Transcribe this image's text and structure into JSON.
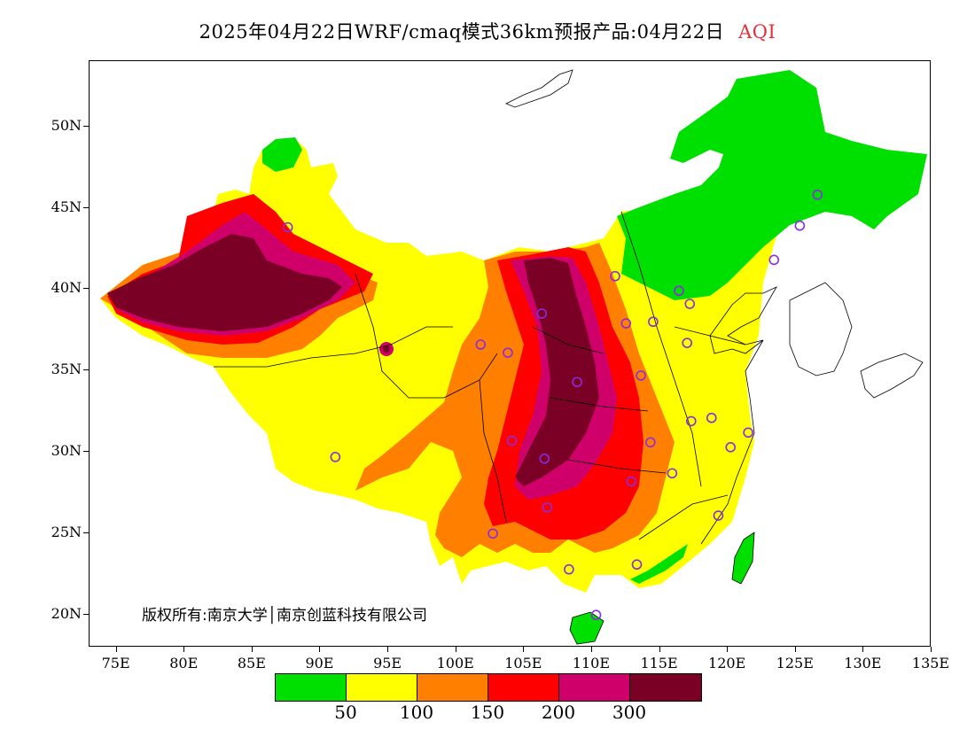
{
  "title": {
    "text": "2025年04月22日WRF/cmaq模式36km预报产品:04月22日",
    "variable": "AQI",
    "variable_color": "#e0303a"
  },
  "map": {
    "lon_range": [
      73,
      135
    ],
    "lat_range": [
      18,
      54
    ],
    "lat_labels": [
      "20N",
      "25N",
      "30N",
      "35N",
      "40N",
      "45N",
      "50N"
    ],
    "lon_labels": [
      "75E",
      "80E",
      "85E",
      "90E",
      "95E",
      "100E",
      "105E",
      "110E",
      "115E",
      "120E",
      "125E",
      "130E",
      "135E"
    ],
    "lat_values": [
      20,
      25,
      30,
      35,
      40,
      45,
      50
    ],
    "lon_values": [
      75,
      80,
      85,
      90,
      95,
      100,
      105,
      110,
      115,
      120,
      125,
      130,
      135
    ],
    "station_marker_color": "#8a2be2",
    "stations": [
      {
        "lon": 87.6,
        "lat": 43.8
      },
      {
        "lon": 91.1,
        "lat": 29.7
      },
      {
        "lon": 101.8,
        "lat": 36.6
      },
      {
        "lon": 103.8,
        "lat": 36.1
      },
      {
        "lon": 106.3,
        "lat": 38.5
      },
      {
        "lon": 104.1,
        "lat": 30.7
      },
      {
        "lon": 106.5,
        "lat": 29.6
      },
      {
        "lon": 106.7,
        "lat": 26.6
      },
      {
        "lon": 102.7,
        "lat": 25.0
      },
      {
        "lon": 108.9,
        "lat": 34.3
      },
      {
        "lon": 111.7,
        "lat": 40.8
      },
      {
        "lon": 112.5,
        "lat": 37.9
      },
      {
        "lon": 114.5,
        "lat": 38.0
      },
      {
        "lon": 116.4,
        "lat": 39.9
      },
      {
        "lon": 117.2,
        "lat": 39.1
      },
      {
        "lon": 113.6,
        "lat": 34.7
      },
      {
        "lon": 117.0,
        "lat": 36.7
      },
      {
        "lon": 114.3,
        "lat": 30.6
      },
      {
        "lon": 112.9,
        "lat": 28.2
      },
      {
        "lon": 115.9,
        "lat": 28.7
      },
      {
        "lon": 117.3,
        "lat": 31.9
      },
      {
        "lon": 118.8,
        "lat": 32.1
      },
      {
        "lon": 120.2,
        "lat": 30.3
      },
      {
        "lon": 121.5,
        "lat": 31.2
      },
      {
        "lon": 119.3,
        "lat": 26.1
      },
      {
        "lon": 113.3,
        "lat": 23.1
      },
      {
        "lon": 108.3,
        "lat": 22.8
      },
      {
        "lon": 110.3,
        "lat": 20.0
      },
      {
        "lon": 123.4,
        "lat": 41.8
      },
      {
        "lon": 125.3,
        "lat": 43.9
      },
      {
        "lon": 126.6,
        "lat": 45.8
      }
    ]
  },
  "copyright": "版权所有:南京大学│南京创蓝科技有限公司",
  "legend": {
    "colors": [
      "#00e000",
      "#ffff00",
      "#ff8000",
      "#ff0000",
      "#d0006a",
      "#7a0025"
    ],
    "labels": [
      "50",
      "100",
      "150",
      "200",
      "300"
    ]
  }
}
